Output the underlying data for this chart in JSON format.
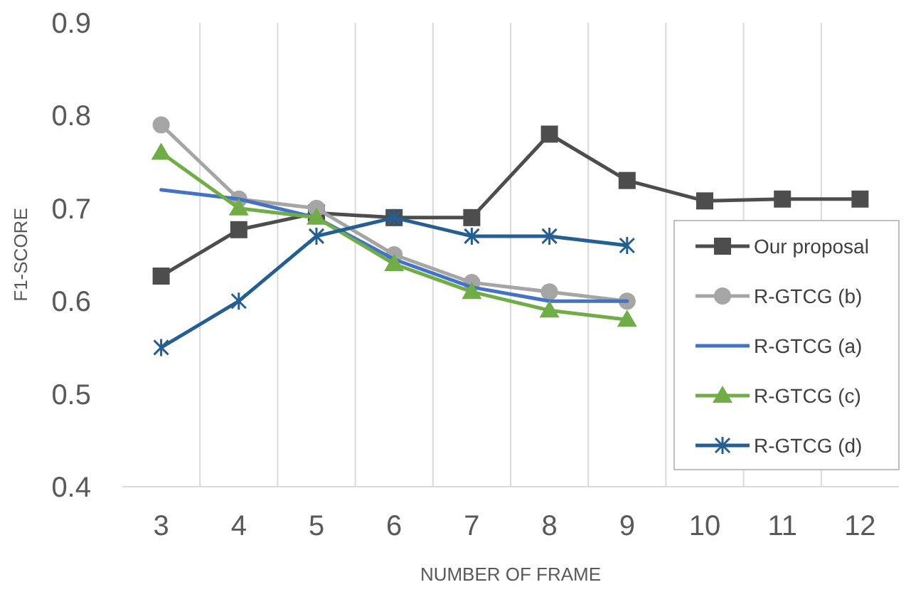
{
  "chart_data": {
    "type": "line",
    "xlabel": "NUMBER OF FRAME",
    "ylabel": "F1-SCORE",
    "categories": [
      "3",
      "4",
      "5",
      "6",
      "7",
      "8",
      "9",
      "10",
      "11",
      "12"
    ],
    "ylim": [
      0.4,
      0.9
    ],
    "yticks": [
      0.4,
      0.5,
      0.6,
      0.7,
      0.8,
      0.9
    ],
    "grid": "x",
    "legend": "right",
    "series": [
      {
        "name": "Our proposal",
        "color": "#4d4d4d",
        "marker": "square",
        "values": [
          0.627,
          0.677,
          0.695,
          0.69,
          0.69,
          0.78,
          0.73,
          0.708,
          0.71,
          0.71
        ]
      },
      {
        "name": "R-GTCG (b)",
        "color": "#a5a5a5",
        "marker": "circle",
        "values": [
          0.79,
          0.71,
          0.7,
          0.65,
          0.62,
          0.61,
          0.6,
          null,
          null,
          null
        ]
      },
      {
        "name": "R-GTCG (a)",
        "color": "#4472c4",
        "marker": "none",
        "values": [
          0.72,
          0.71,
          0.69,
          0.645,
          0.615,
          0.6,
          0.6,
          null,
          null,
          null
        ]
      },
      {
        "name": "R-GTCG (c)",
        "color": "#70ad47",
        "marker": "triangle",
        "values": [
          0.76,
          0.7,
          0.69,
          0.64,
          0.61,
          0.59,
          0.58,
          null,
          null,
          null
        ]
      },
      {
        "name": "R-GTCG (d)",
        "color": "#255e91",
        "marker": "cross",
        "values": [
          0.55,
          0.6,
          0.67,
          0.69,
          0.67,
          0.67,
          0.66,
          null,
          null,
          null
        ]
      }
    ]
  }
}
